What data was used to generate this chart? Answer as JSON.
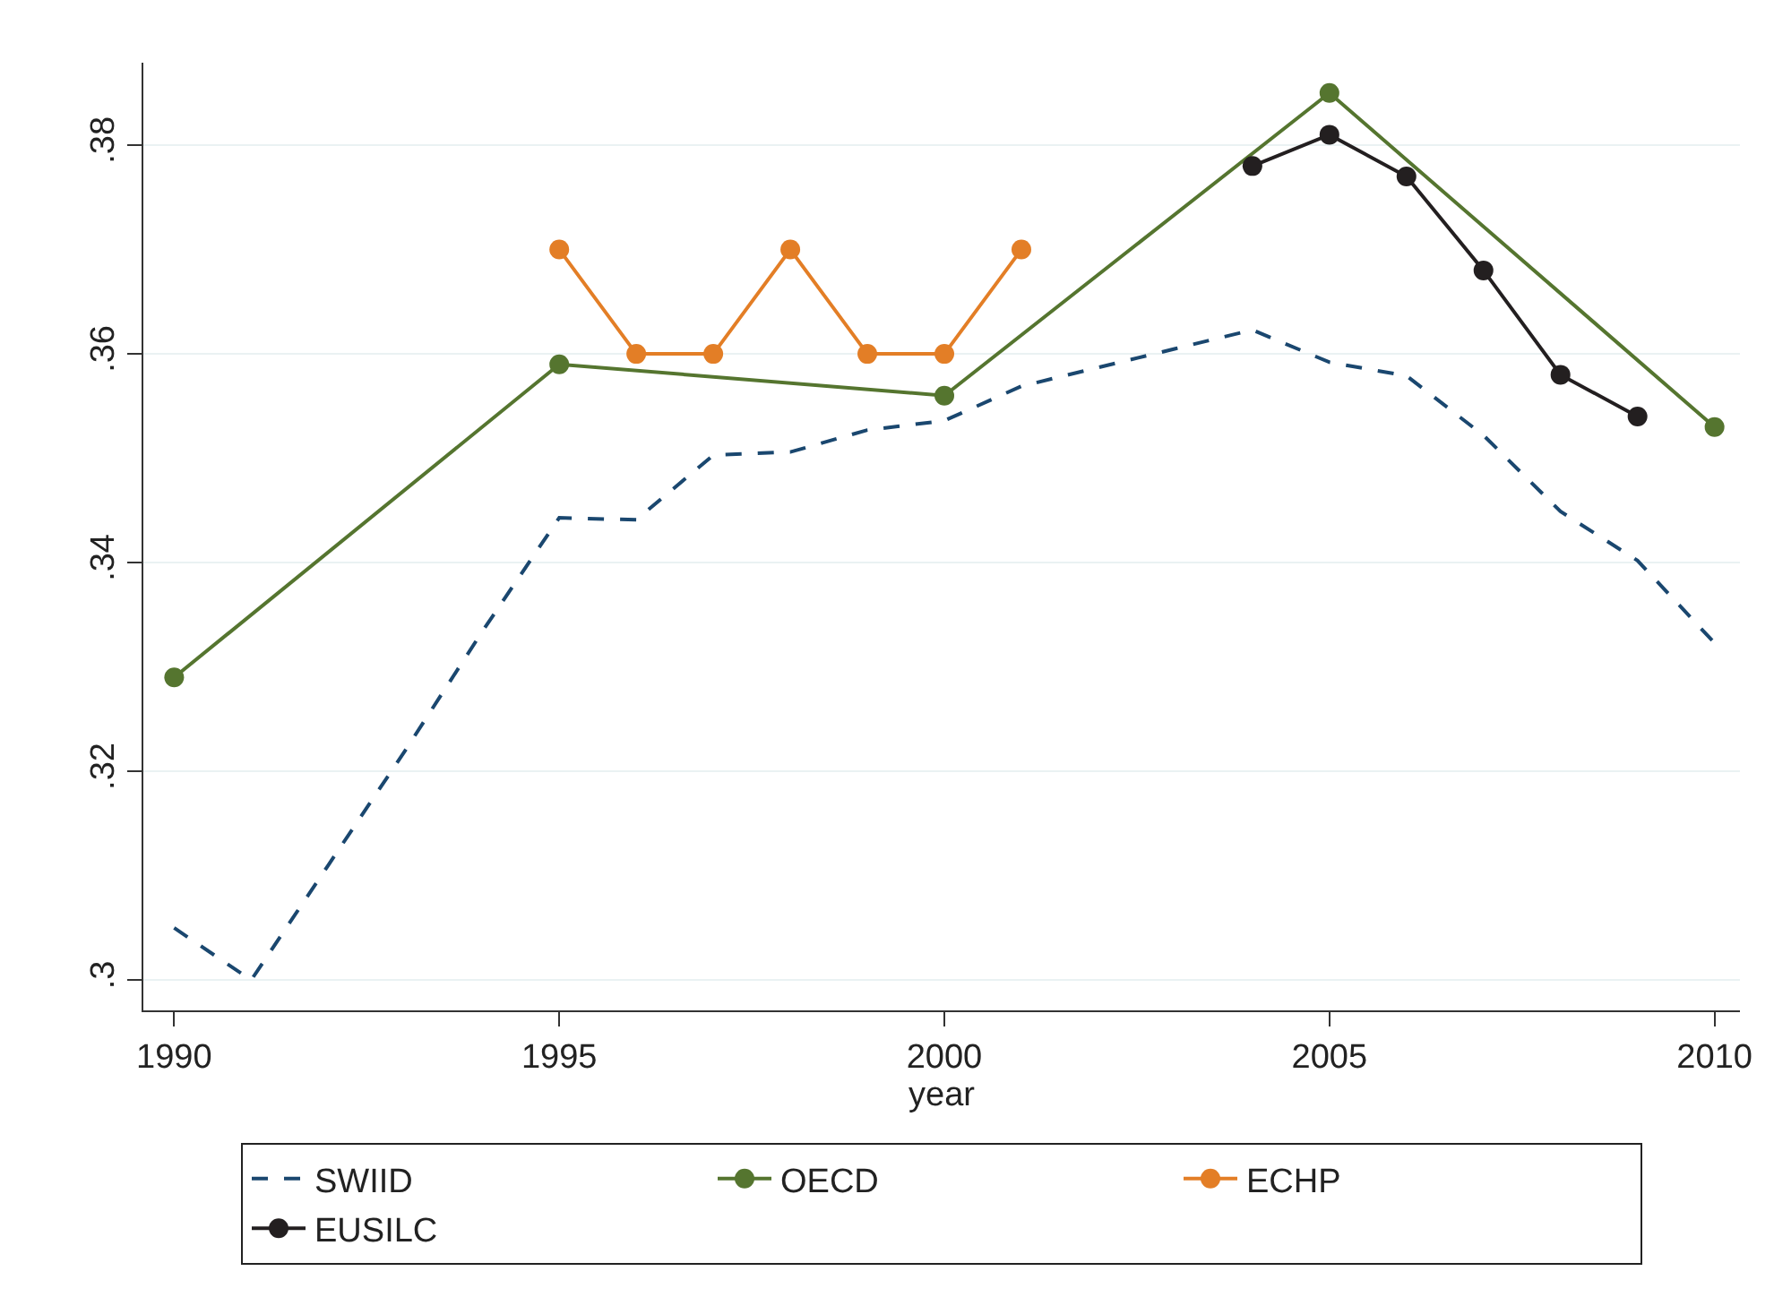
{
  "chart_data": {
    "type": "line",
    "xlabel": "year",
    "xlim": [
      1989.6,
      2010.33
    ],
    "xticks": [
      1990,
      1995,
      2000,
      2005,
      2010
    ],
    "ylim": [
      0.2971,
      0.3879
    ],
    "yticks": [
      {
        "value": 0.3,
        "label": ".3"
      },
      {
        "value": 0.32,
        "label": ".32"
      },
      {
        "value": 0.34,
        "label": ".34"
      },
      {
        "value": 0.36,
        "label": ".36"
      },
      {
        "value": 0.38,
        "label": ".38"
      }
    ],
    "grid": "y",
    "legend": "bottom",
    "series": [
      {
        "name": "SWIID",
        "color": "#1a476f",
        "line_style": "dashed",
        "marker": "none",
        "x": [
          1990,
          1991,
          1992,
          1993,
          1994,
          1995,
          1996,
          1997,
          1998,
          1999,
          2000,
          2001,
          2002,
          2003,
          2004,
          2005,
          2006,
          2007,
          2008,
          2009,
          2010
        ],
        "values": [
          0.305,
          0.3,
          0.311,
          0.322,
          0.3334,
          0.3443,
          0.3441,
          0.3503,
          0.3506,
          0.3527,
          0.3536,
          0.3569,
          0.3587,
          0.3605,
          0.3623,
          0.3592,
          0.3579,
          0.3522,
          0.3449,
          0.3402,
          0.3323
        ]
      },
      {
        "name": "OECD",
        "color": "#55752f",
        "line_style": "solid",
        "marker": "circle",
        "x": [
          1990,
          1995,
          2000,
          2005,
          2010
        ],
        "values": [
          0.329,
          0.359,
          0.356,
          0.385,
          0.353
        ]
      },
      {
        "name": "ECHP",
        "color": "#e37e26",
        "line_style": "solid",
        "marker": "circle",
        "x": [
          1995,
          1996,
          1997,
          1998,
          1999,
          2000,
          2001
        ],
        "values": [
          0.37,
          0.36,
          0.36,
          0.37,
          0.36,
          0.36,
          0.37
        ]
      },
      {
        "name": "EUSILC",
        "color": "#231f20",
        "line_style": "solid",
        "marker": "circle",
        "x": [
          2004,
          2005,
          2006,
          2007,
          2008,
          2009
        ],
        "values": [
          0.378,
          0.381,
          0.377,
          0.368,
          0.358,
          0.354
        ]
      }
    ]
  }
}
